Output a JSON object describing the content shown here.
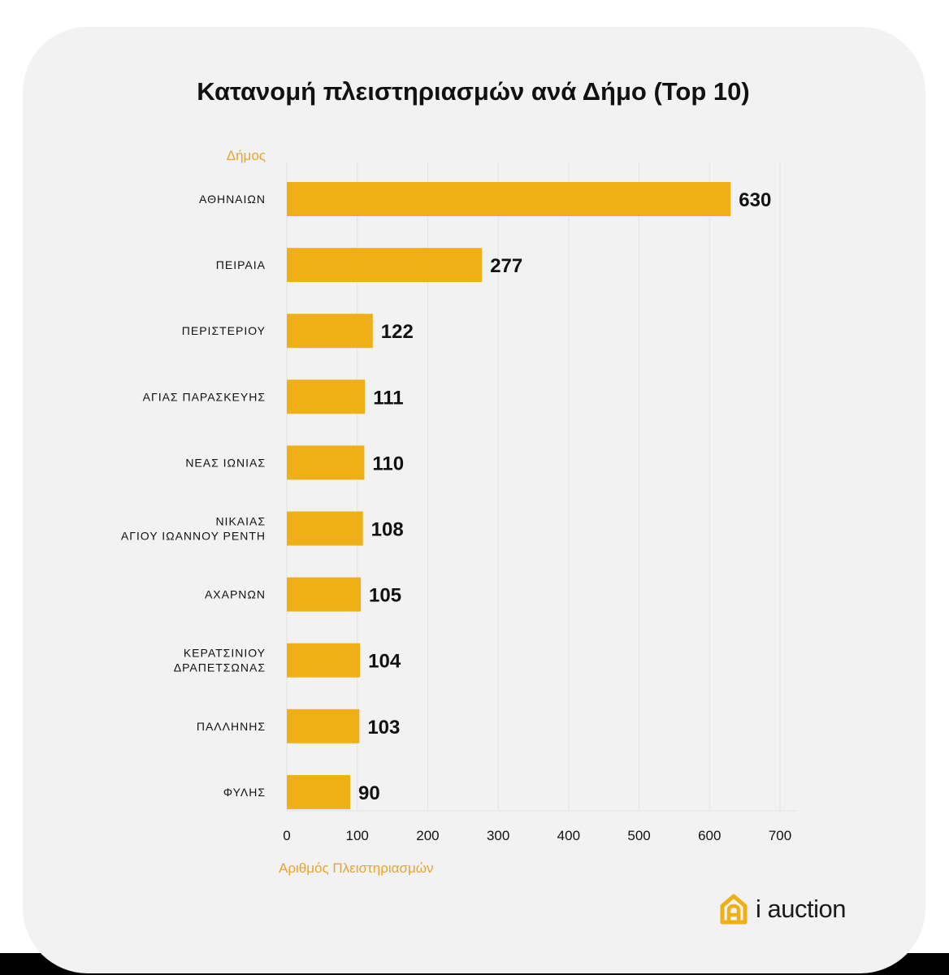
{
  "chart_data": {
    "type": "bar",
    "orientation": "horizontal",
    "title": "Κατανομή πλειστηριασμών ανά Δήμο (Top 10)",
    "ylabel": "Δήμος",
    "xlabel": "Αριθμός Πλειστηριασμών",
    "categories": [
      [
        "ΑΘΗΝΑΙΩΝ"
      ],
      [
        "ΠΕΙΡΑΙΑ"
      ],
      [
        "ΠΕΡΙΣΤΕΡΙΟΥ"
      ],
      [
        "ΑΓΙΑΣ ΠΑΡΑΣΚΕΥΗΣ"
      ],
      [
        "ΝΕΑΣ ΙΩΝΙΑΣ"
      ],
      [
        "ΝΙΚΑΙΑΣ",
        "ΑΓΙΟΥ ΙΩΑΝΝΟΥ ΡΕΝΤΗ"
      ],
      [
        "ΑΧΑΡΝΩΝ"
      ],
      [
        "ΚΕΡΑΤΣΙΝΙΟΥ",
        "ΔΡΑΠΕΤΣΩΝΑΣ"
      ],
      [
        "ΠΑΛΛΗΝΗΣ"
      ],
      [
        "ΦΥΛΗΣ"
      ]
    ],
    "values": [
      630,
      277,
      122,
      111,
      110,
      108,
      105,
      104,
      103,
      90
    ],
    "xlim": [
      0,
      700
    ],
    "xticks": [
      0,
      100,
      200,
      300,
      400,
      500,
      600,
      700
    ],
    "grid": true,
    "bar_color": "#EFAF17",
    "label_color": "#111111",
    "axis_title_color": "#E8A52C",
    "gridline_color": "#e3e3e3"
  },
  "brand": {
    "name": "i auction",
    "logo_icon": "house-a-icon",
    "logo_color": "#EFAF17"
  }
}
